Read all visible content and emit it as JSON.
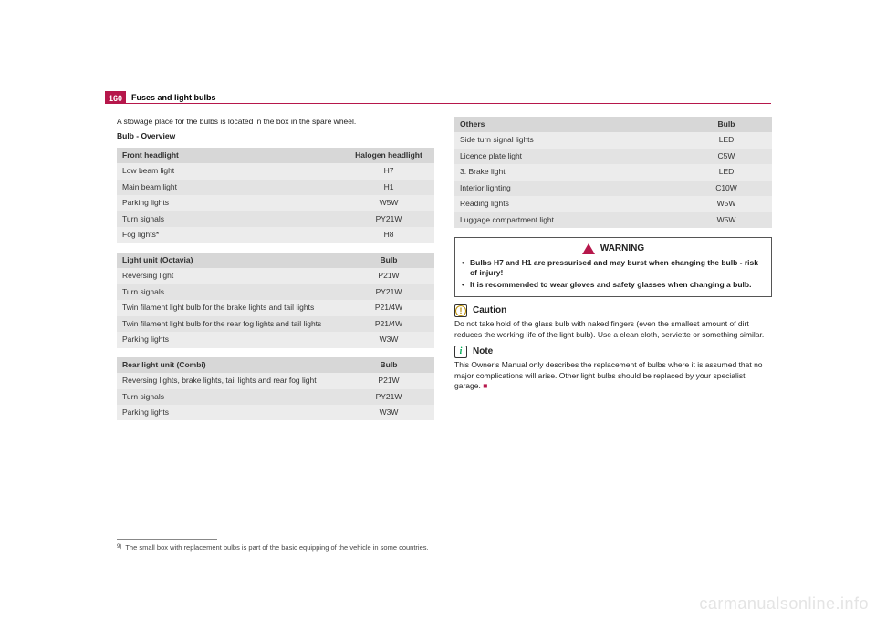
{
  "page_number": "160",
  "section_title": "Fuses and light bulbs",
  "intro_text": "A stowage place for the bulbs is located in the box in the spare wheel.",
  "overview_heading": "Bulb - Overview",
  "tables": {
    "front_headlight": {
      "head_left": "Front headlight",
      "head_right": "Halogen headlight",
      "rows": [
        {
          "label": "Low beam light",
          "value": "H7"
        },
        {
          "label": "Main beam light",
          "value": "H1"
        },
        {
          "label": "Parking lights",
          "value": "W5W"
        },
        {
          "label": "Turn signals",
          "value": "PY21W"
        },
        {
          "label": "Fog lights*",
          "value": "H8"
        }
      ]
    },
    "light_unit_octavia": {
      "head_left": "Light unit (Octavia)",
      "head_right": "Bulb",
      "rows": [
        {
          "label": "Reversing light",
          "value": "P21W"
        },
        {
          "label": "Turn signals",
          "value": "PY21W"
        },
        {
          "label": "Twin filament light bulb for the brake lights and tail lights",
          "value": "P21/4W"
        },
        {
          "label": "Twin filament light bulb for the rear fog lights and tail lights",
          "value": "P21/4W"
        },
        {
          "label": "Parking lights",
          "value": "W3W"
        }
      ]
    },
    "rear_light_combi": {
      "head_left": "Rear light unit (Combi)",
      "head_right": "Bulb",
      "rows": [
        {
          "label": "Reversing lights, brake lights, tail lights and rear fog light",
          "value": "P21W"
        },
        {
          "label": "Turn signals",
          "value": "PY21W"
        },
        {
          "label": "Parking lights",
          "value": "W3W"
        }
      ]
    },
    "others": {
      "head_left": "Others",
      "head_right": "Bulb",
      "rows": [
        {
          "label": "Side turn signal lights",
          "value": "LED"
        },
        {
          "label": "Licence plate light",
          "value": "C5W"
        },
        {
          "label": "3. Brake light",
          "value": "LED"
        },
        {
          "label": "Interior lighting",
          "value": "C10W"
        },
        {
          "label": "Reading lights",
          "value": "W5W"
        },
        {
          "label": "Luggage compartment light",
          "value": "W5W"
        }
      ]
    }
  },
  "warning": {
    "heading": "WARNING",
    "items": [
      "Bulbs H7 and H1 are pressurised and may burst when changing the bulb - risk of injury!",
      "It is recommended to wear gloves and safety glasses when changing a bulb."
    ]
  },
  "caution": {
    "heading": "Caution",
    "text": "Do not take hold of the glass bulb with naked fingers (even the smallest amount of dirt reduces the working life of the light bulb). Use a clean cloth, serviette or something similar."
  },
  "note": {
    "heading": "Note",
    "text": "This Owner's Manual only describes the replacement of bulbs where it is assumed that no major complications will arise. Other light bulbs should be replaced by your specialist garage."
  },
  "footnote": {
    "marker": "9)",
    "text": "The small box with replacement bulbs is part of the basic equipping of the vehicle in some countries."
  },
  "watermark": "carmanualsonline.info",
  "colors": {
    "accent": "#b6174b",
    "table_header_bg": "#d7d7d7",
    "row_light_bg": "#ececec",
    "row_dark_bg": "#e3e3e3",
    "watermark_color": "#e4e4e4"
  }
}
